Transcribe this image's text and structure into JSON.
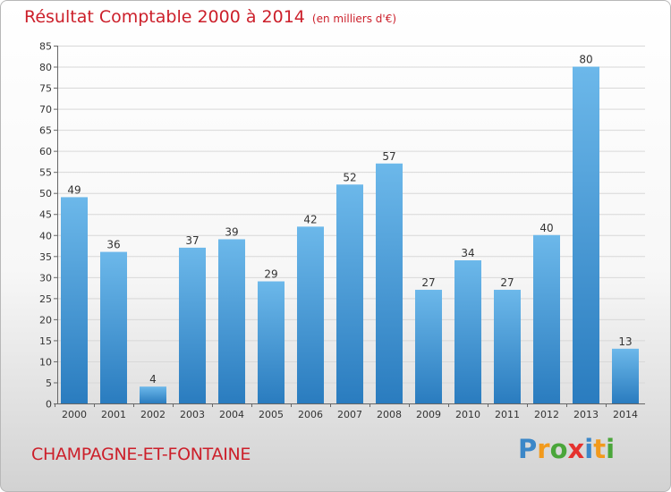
{
  "header": {
    "title": "Résultat Comptable 2000 à 2014",
    "unit": "(en milliers d'€)"
  },
  "footer": {
    "commune": "CHAMPAGNE-ET-FONTAINE",
    "logo": {
      "text": "Proxiti",
      "letters": [
        {
          "ch": "P",
          "color": "#3b87c8"
        },
        {
          "ch": "r",
          "color": "#f29a1c"
        },
        {
          "ch": "o",
          "color": "#4aa63a"
        },
        {
          "ch": "x",
          "color": "#e5322e"
        },
        {
          "ch": "i",
          "color": "#3b87c8"
        },
        {
          "ch": "t",
          "color": "#f29a1c"
        },
        {
          "ch": "i",
          "color": "#4aa63a"
        }
      ]
    }
  },
  "colors": {
    "bar_light": "#6cb8ea",
    "bar_dark": "#2a7cbf",
    "title": "#cc1f2a",
    "grid": "#d8d8d8",
    "axis": "#666666"
  },
  "chart_data": {
    "type": "bar",
    "title": "Résultat Comptable 2000 à 2014",
    "ylabel": "en milliers d'€",
    "xlabel": "",
    "categories": [
      "2000",
      "2001",
      "2002",
      "2003",
      "2004",
      "2005",
      "2006",
      "2007",
      "2008",
      "2009",
      "2010",
      "2011",
      "2012",
      "2013",
      "2014"
    ],
    "values": [
      49,
      36,
      4,
      37,
      39,
      29,
      42,
      52,
      57,
      27,
      34,
      27,
      40,
      80,
      13
    ],
    "ylim": [
      0,
      85
    ],
    "yticks": [
      0,
      5,
      10,
      15,
      20,
      25,
      30,
      35,
      40,
      45,
      50,
      55,
      60,
      65,
      70,
      75,
      80,
      85
    ],
    "grid": true,
    "data_labels": true
  }
}
